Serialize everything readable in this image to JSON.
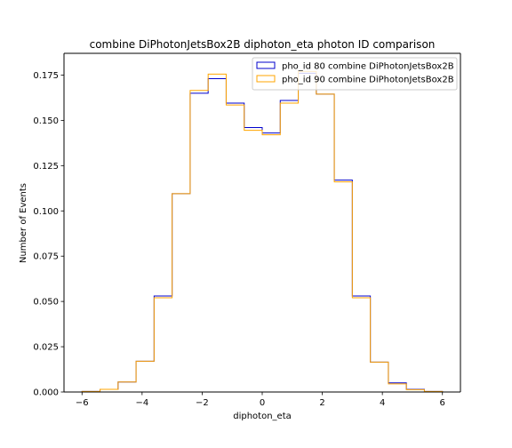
{
  "chart_data": {
    "type": "histogram",
    "title": "combine DiPhotonJetsBox2B diphoton_eta photon ID comparison",
    "xlabel": "diphoton_eta",
    "ylabel": "Number of Events",
    "xlim": [
      -6.6,
      6.6
    ],
    "ylim": [
      0,
      0.187
    ],
    "xticks": [
      -6,
      -4,
      -2,
      0,
      2,
      4,
      6
    ],
    "xtick_labels": [
      "−6",
      "−4",
      "−2",
      "0",
      "2",
      "4",
      "6"
    ],
    "yticks": [
      0.0,
      0.025,
      0.05,
      0.075,
      0.1,
      0.125,
      0.15,
      0.175
    ],
    "ytick_labels": [
      "0.000",
      "0.025",
      "0.050",
      "0.075",
      "0.100",
      "0.125",
      "0.150",
      "0.175"
    ],
    "grid": false,
    "legend_position": "top-right",
    "bin_edges": [
      -6.0,
      -5.4,
      -4.8,
      -4.2,
      -3.6,
      -3.0,
      -2.4,
      -1.8,
      -1.2,
      -0.6,
      0.0,
      0.6,
      1.2,
      1.8,
      2.4,
      3.0,
      3.6,
      4.2,
      4.8,
      5.4,
      6.0
    ],
    "series": [
      {
        "name": "pho_id 80 combine DiPhotonJetsBox2B",
        "color": "#0000cc",
        "values": [
          0.0003,
          0.0015,
          0.0055,
          0.017,
          0.053,
          0.1095,
          0.165,
          0.173,
          0.1595,
          0.146,
          0.143,
          0.161,
          0.176,
          0.1645,
          0.117,
          0.053,
          0.0165,
          0.005,
          0.0015,
          0.0003
        ]
      },
      {
        "name": "pho_id 90 combine DiPhotonJetsBox2B",
        "color": "#ffa500",
        "values": [
          0.0003,
          0.0015,
          0.0055,
          0.017,
          0.052,
          0.1095,
          0.1665,
          0.1755,
          0.1585,
          0.1445,
          0.142,
          0.1595,
          0.177,
          0.1645,
          0.116,
          0.052,
          0.0165,
          0.0045,
          0.0013,
          0.0003
        ]
      }
    ]
  }
}
